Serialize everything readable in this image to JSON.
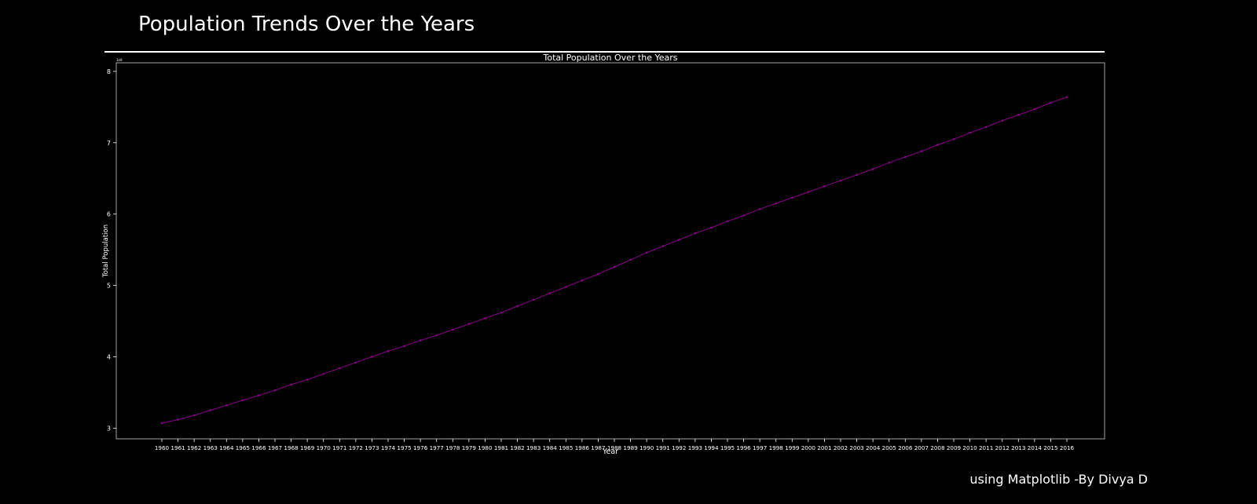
{
  "page": {
    "title": "Population Trends Over the Years",
    "credit": "using Matplotlib -By Divya D"
  },
  "colors": {
    "background": "#000000",
    "text": "#ffffff",
    "line": "#8b008b",
    "axis": "#ffffff"
  },
  "chart_data": {
    "type": "line",
    "title": "Total Population Over the Years",
    "xlabel": "Year",
    "ylabel": "Total Population",
    "y_offset_text": "1e9",
    "ylim": [
      2.85,
      8.12
    ],
    "y_ticks": [
      3,
      4,
      5,
      6,
      7,
      8
    ],
    "grid": false,
    "series": [
      {
        "marker": "o",
        "x": [
          1960,
          1961,
          1962,
          1963,
          1964,
          1965,
          1966,
          1967,
          1968,
          1969,
          1970,
          1971,
          1972,
          1973,
          1974,
          1975,
          1976,
          1977,
          1978,
          1979,
          1980,
          1981,
          1982,
          1983,
          1984,
          1985,
          1986,
          1987,
          1988,
          1989,
          1990,
          1991,
          1992,
          1993,
          1994,
          1995,
          1996,
          1997,
          1998,
          1999,
          2000,
          2001,
          2002,
          2003,
          2004,
          2005,
          2006,
          2007,
          2008,
          2009,
          2010,
          2011,
          2012,
          2013,
          2014,
          2015,
          2016
        ],
        "y": [
          3.07,
          3.12,
          3.18,
          3.25,
          3.32,
          3.39,
          3.46,
          3.53,
          3.61,
          3.68,
          3.76,
          3.84,
          3.92,
          4.0,
          4.08,
          4.15,
          4.23,
          4.3,
          4.38,
          4.46,
          4.54,
          4.62,
          4.71,
          4.8,
          4.89,
          4.98,
          5.07,
          5.16,
          5.26,
          5.36,
          5.46,
          5.55,
          5.64,
          5.73,
          5.81,
          5.9,
          5.98,
          6.07,
          6.15,
          6.23,
          6.31,
          6.39,
          6.47,
          6.55,
          6.63,
          6.72,
          6.8,
          6.88,
          6.97,
          7.05,
          7.14,
          7.22,
          7.31,
          7.39,
          7.47,
          7.56,
          7.64
        ]
      }
    ]
  }
}
